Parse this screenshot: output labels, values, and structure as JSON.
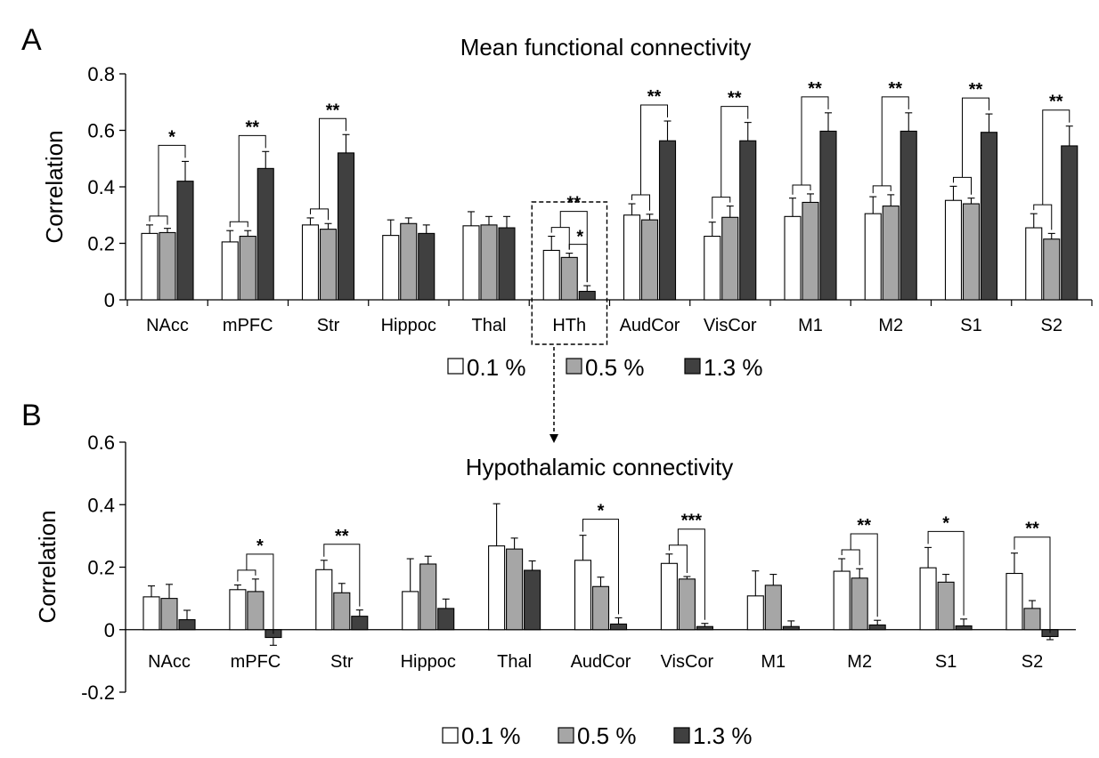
{
  "figure": {
    "panel_a_letter": "A",
    "panel_b_letter": "B"
  },
  "legend_a": [
    {
      "label": "0.1 %",
      "color": "#ffffff"
    },
    {
      "label": "0.5 %",
      "color": "#a6a6a6"
    },
    {
      "label": "1.3 %",
      "color": "#404040"
    }
  ],
  "legend_b": [
    {
      "label": "0.1 %",
      "color": "#ffffff"
    },
    {
      "label": "0.5 %",
      "color": "#a6a6a6"
    },
    {
      "label": "1.3 %",
      "color": "#404040"
    }
  ],
  "chart_data": [
    {
      "type": "bar",
      "title": "Mean functional connectivity",
      "ylabel": "Correlation",
      "xlabel": "",
      "ylim": [
        0,
        0.8
      ],
      "yticks": [
        "0",
        "0.2",
        "0.4",
        "0.6",
        "0.8"
      ],
      "categories": [
        "NAcc",
        "mPFC",
        "Str",
        "Hippoc",
        "Thal",
        "HTh",
        "AudCor",
        "VisCor",
        "M1",
        "M2",
        "S1",
        "S2"
      ],
      "highlight_category": "HTh",
      "series": [
        {
          "name": "0.1 %",
          "color": "#ffffff",
          "values": [
            0.235,
            0.205,
            0.265,
            0.228,
            0.262,
            0.175,
            0.3,
            0.225,
            0.295,
            0.305,
            0.352,
            0.255
          ],
          "errors": [
            0.03,
            0.04,
            0.025,
            0.055,
            0.05,
            0.05,
            0.04,
            0.05,
            0.065,
            0.06,
            0.05,
            0.05
          ]
        },
        {
          "name": "0.5 %",
          "color": "#a6a6a6",
          "values": [
            0.238,
            0.225,
            0.25,
            0.27,
            0.265,
            0.15,
            0.283,
            0.292,
            0.345,
            0.332,
            0.34,
            0.215
          ],
          "errors": [
            0.015,
            0.02,
            0.02,
            0.02,
            0.03,
            0.015,
            0.02,
            0.04,
            0.03,
            0.04,
            0.02,
            0.02
          ]
        },
        {
          "name": "1.3 %",
          "color": "#404040",
          "values": [
            0.42,
            0.465,
            0.52,
            0.235,
            0.255,
            0.03,
            0.563,
            0.563,
            0.597,
            0.597,
            0.593,
            0.545
          ],
          "errors": [
            0.07,
            0.06,
            0.065,
            0.03,
            0.04,
            0.02,
            0.07,
            0.065,
            0.065,
            0.065,
            0.065,
            0.07
          ]
        }
      ],
      "annotations": [
        {
          "category": 0,
          "label": "*"
        },
        {
          "category": 1,
          "label": "**"
        },
        {
          "category": 2,
          "label": "**"
        },
        {
          "category": 5,
          "label": "**",
          "inner": "*"
        },
        {
          "category": 6,
          "label": "**"
        },
        {
          "category": 7,
          "label": "**"
        },
        {
          "category": 8,
          "label": "**"
        },
        {
          "category": 9,
          "label": "**"
        },
        {
          "category": 10,
          "label": "**"
        },
        {
          "category": 11,
          "label": "**"
        }
      ]
    },
    {
      "type": "bar",
      "title": "Hypothalamic connectivity",
      "ylabel": "Correlation",
      "xlabel": "",
      "ylim": [
        -0.2,
        0.6
      ],
      "yticks": [
        "-0.2",
        "0",
        "0.2",
        "0.4",
        "0.6"
      ],
      "categories": [
        "NAcc",
        "mPFC",
        "Str",
        "Hippoc",
        "Thal",
        "AudCor",
        "VisCor",
        "M1",
        "M2",
        "S1",
        "S2"
      ],
      "series": [
        {
          "name": "0.1 %",
          "color": "#ffffff",
          "values": [
            0.105,
            0.128,
            0.192,
            0.122,
            0.268,
            0.222,
            0.212,
            0.108,
            0.187,
            0.198,
            0.18
          ],
          "errors": [
            0.035,
            0.015,
            0.03,
            0.105,
            0.135,
            0.08,
            0.03,
            0.08,
            0.04,
            0.065,
            0.065
          ]
        },
        {
          "name": "0.5 %",
          "color": "#a6a6a6",
          "values": [
            0.1,
            0.122,
            0.118,
            0.21,
            0.258,
            0.138,
            0.162,
            0.142,
            0.165,
            0.152,
            0.068
          ],
          "errors": [
            0.045,
            0.04,
            0.03,
            0.025,
            0.035,
            0.03,
            0.008,
            0.035,
            0.03,
            0.025,
            0.025
          ]
        },
        {
          "name": "1.3 %",
          "color": "#404040",
          "values": [
            0.032,
            -0.025,
            0.043,
            0.068,
            0.19,
            0.018,
            0.01,
            0.01,
            0.015,
            0.012,
            -0.022
          ],
          "errors": [
            0.03,
            0.025,
            0.02,
            0.03,
            0.03,
            0.02,
            0.01,
            0.018,
            0.015,
            0.022,
            0.01
          ]
        }
      ],
      "annotations": [
        {
          "category": 1,
          "label": "*"
        },
        {
          "category": 2,
          "label": "**"
        },
        {
          "category": 5,
          "label": "*"
        },
        {
          "category": 6,
          "label": "***"
        },
        {
          "category": 8,
          "label": "**"
        },
        {
          "category": 9,
          "label": "*"
        },
        {
          "category": 10,
          "label": "**"
        }
      ]
    }
  ]
}
